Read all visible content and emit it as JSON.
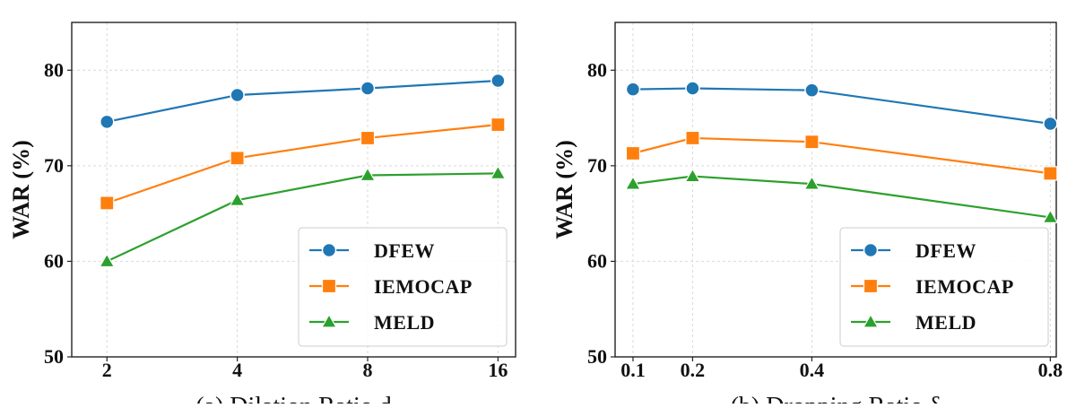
{
  "chart_data": [
    {
      "type": "line",
      "x": [
        "2",
        "4",
        "8",
        "16"
      ],
      "ylabel": "WAR (%)",
      "ylim": [
        50,
        85
      ],
      "yticks": [
        "50",
        "60",
        "70",
        "80"
      ],
      "grid": true,
      "legend_position": "bottom-right",
      "subcaption": "(a) Dilation Ratio d",
      "series": [
        {
          "name": "DFEW",
          "values": [
            74.6,
            77.4,
            78.1,
            78.9
          ],
          "color": "#1f77b4",
          "marker": "circle"
        },
        {
          "name": "IEMOCAP",
          "values": [
            66.1,
            70.8,
            72.9,
            74.3
          ],
          "color": "#ff7f0e",
          "marker": "square"
        },
        {
          "name": "MELD",
          "values": [
            60.0,
            66.4,
            69.0,
            69.2
          ],
          "color": "#2ca02c",
          "marker": "triangle"
        }
      ]
    },
    {
      "type": "line",
      "x": [
        "0.1",
        "0.2",
        "0.4",
        "0.8"
      ],
      "ylabel": "WAR (%)",
      "ylim": [
        50,
        85
      ],
      "yticks": [
        "50",
        "60",
        "70",
        "80"
      ],
      "grid": true,
      "legend_position": "bottom-right",
      "subcaption": "(b) Dropping Ratio δ",
      "series": [
        {
          "name": "DFEW",
          "values": [
            78.0,
            78.1,
            77.9,
            74.4
          ],
          "color": "#1f77b4",
          "marker": "circle"
        },
        {
          "name": "IEMOCAP",
          "values": [
            71.3,
            72.9,
            72.5,
            69.2
          ],
          "color": "#ff7f0e",
          "marker": "square"
        },
        {
          "name": "MELD",
          "values": [
            68.1,
            68.9,
            68.1,
            64.6
          ],
          "color": "#2ca02c",
          "marker": "triangle"
        }
      ]
    }
  ]
}
